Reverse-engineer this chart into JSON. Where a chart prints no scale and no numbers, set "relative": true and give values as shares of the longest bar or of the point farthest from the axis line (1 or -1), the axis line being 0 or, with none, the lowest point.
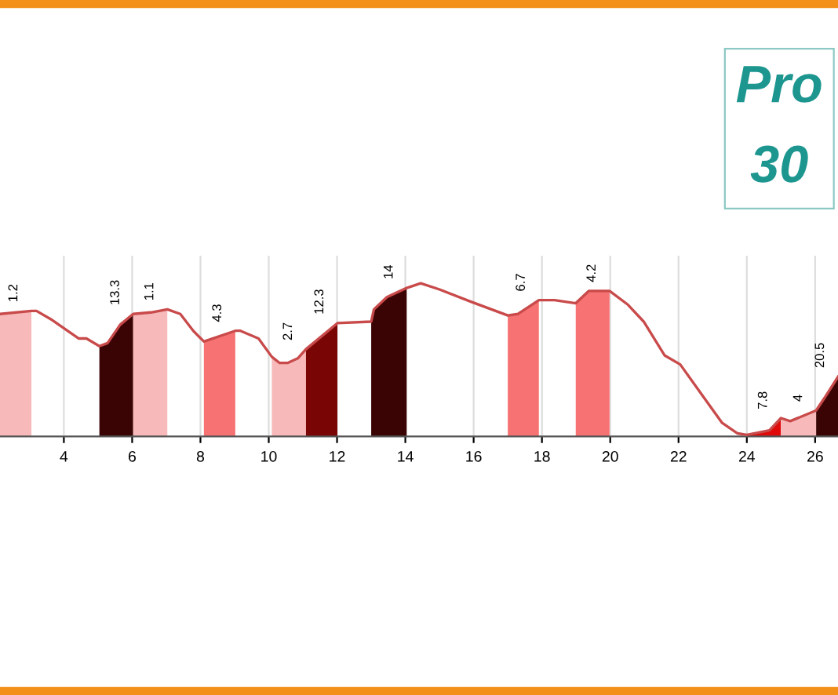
{
  "chart_data": {
    "type": "line",
    "relative": true,
    "grid": "x",
    "xlim": [
      2.13,
      26.67
    ],
    "xticks": [
      4,
      6,
      8,
      10,
      12,
      14,
      16,
      18,
      20,
      22,
      24,
      26
    ],
    "series": [
      {
        "color": "#c94a4a",
        "x": [
          2.13,
          3.05,
          3.2,
          3.66,
          4.43,
          4.66,
          5.04,
          5.28,
          5.65,
          6.03,
          6.55,
          7.03,
          7.41,
          7.79,
          8.1,
          9.02,
          9.17,
          9.7,
          10.09,
          10.32,
          10.55,
          10.85,
          11.09,
          12.01,
          13.0,
          13.08,
          13.46,
          14.04,
          14.45,
          15.0,
          15.92,
          17.0,
          17.3,
          17.91,
          18.37,
          18.99,
          19.37,
          19.98,
          20.52,
          20.98,
          21.59,
          22.05,
          22.66,
          23.27,
          23.73,
          24.0,
          24.66,
          25.0,
          25.27,
          26.03,
          26.3,
          26.67
        ],
        "values": [
          0.8,
          0.82,
          0.82,
          0.76,
          0.64,
          0.64,
          0.59,
          0.61,
          0.73,
          0.8,
          0.81,
          0.83,
          0.8,
          0.69,
          0.62,
          0.69,
          0.69,
          0.64,
          0.52,
          0.48,
          0.48,
          0.51,
          0.57,
          0.74,
          0.75,
          0.83,
          0.91,
          0.97,
          1,
          0.96,
          0.88,
          0.79,
          0.8,
          0.89,
          0.89,
          0.87,
          0.95,
          0.95,
          0.86,
          0.75,
          0.53,
          0.47,
          0.28,
          0.09,
          0.02,
          0.01,
          0.04,
          0.12,
          0.1,
          0.17,
          0.26,
          0.39
        ]
      },
      {
        "type": "area",
        "color": "#f7b9b9",
        "x": [
          2.13,
          3.05
        ],
        "values": [
          0.8,
          0.82
        ]
      },
      {
        "type": "area",
        "color": "#3b0404",
        "x": [
          5.04,
          5.28,
          5.65,
          6.03
        ],
        "values": [
          0.59,
          0.61,
          0.73,
          0.8
        ]
      },
      {
        "type": "area",
        "color": "#f7b9b9",
        "x": [
          6.03,
          6.55,
          7.03
        ],
        "values": [
          0.8,
          0.81,
          0.83
        ]
      },
      {
        "type": "area",
        "color": "#f77272",
        "x": [
          8.1,
          9.02
        ],
        "values": [
          0.62,
          0.69
        ]
      },
      {
        "type": "area",
        "color": "#f7b9b9",
        "x": [
          10.09,
          10.32,
          10.55,
          10.85,
          11.09
        ],
        "values": [
          0.52,
          0.48,
          0.48,
          0.51,
          0.57
        ]
      },
      {
        "type": "area",
        "color": "#7a0505",
        "x": [
          11.09,
          12.01
        ],
        "values": [
          0.57,
          0.74
        ]
      },
      {
        "type": "area",
        "color": "#3b0404",
        "x": [
          13.0,
          13.08,
          13.46,
          14.04
        ],
        "values": [
          0.75,
          0.83,
          0.91,
          0.97
        ]
      },
      {
        "type": "area",
        "color": "#f77272",
        "x": [
          17.0,
          17.3,
          17.91
        ],
        "values": [
          0.79,
          0.8,
          0.89
        ]
      },
      {
        "type": "area",
        "color": "#f77272",
        "x": [
          18.99,
          19.37,
          19.98
        ],
        "values": [
          0.87,
          0.95,
          0.95
        ]
      },
      {
        "type": "area",
        "color": "#e00a0a",
        "x": [
          24.0,
          24.66,
          25.0
        ],
        "values": [
          0.01,
          0.04,
          0.12
        ]
      },
      {
        "type": "area",
        "color": "#f7b9b9",
        "x": [
          25.0,
          25.27,
          26.03
        ],
        "values": [
          0.12,
          0.1,
          0.17
        ]
      },
      {
        "type": "area",
        "color": "#3b0404",
        "x": [
          26.03,
          26.3,
          26.67
        ],
        "values": [
          0.17,
          0.26,
          0.39
        ]
      }
    ],
    "annotations": [
      {
        "text": "1.2",
        "x": 3.05,
        "y": 0.82
      },
      {
        "text": "13.3",
        "x": 6.03,
        "y": 0.8
      },
      {
        "text": "1.1",
        "x": 7.03,
        "y": 0.83
      },
      {
        "text": "4.3",
        "x": 9.02,
        "y": 0.69
      },
      {
        "text": "2.7",
        "x": 11.09,
        "y": 0.57
      },
      {
        "text": "12.3",
        "x": 12.01,
        "y": 0.74
      },
      {
        "text": "14",
        "x": 14.04,
        "y": 0.97
      },
      {
        "text": "6.7",
        "x": 17.91,
        "y": 0.89
      },
      {
        "text": "4.2",
        "x": 19.98,
        "y": 0.95
      },
      {
        "text": "7.8",
        "x": 25.0,
        "y": 0.12
      },
      {
        "text": "4",
        "x": 26.03,
        "y": 0.17
      },
      {
        "text": "20.5",
        "x": 26.67,
        "y": 0.39
      },
      "Pro",
      "30"
    ]
  }
}
